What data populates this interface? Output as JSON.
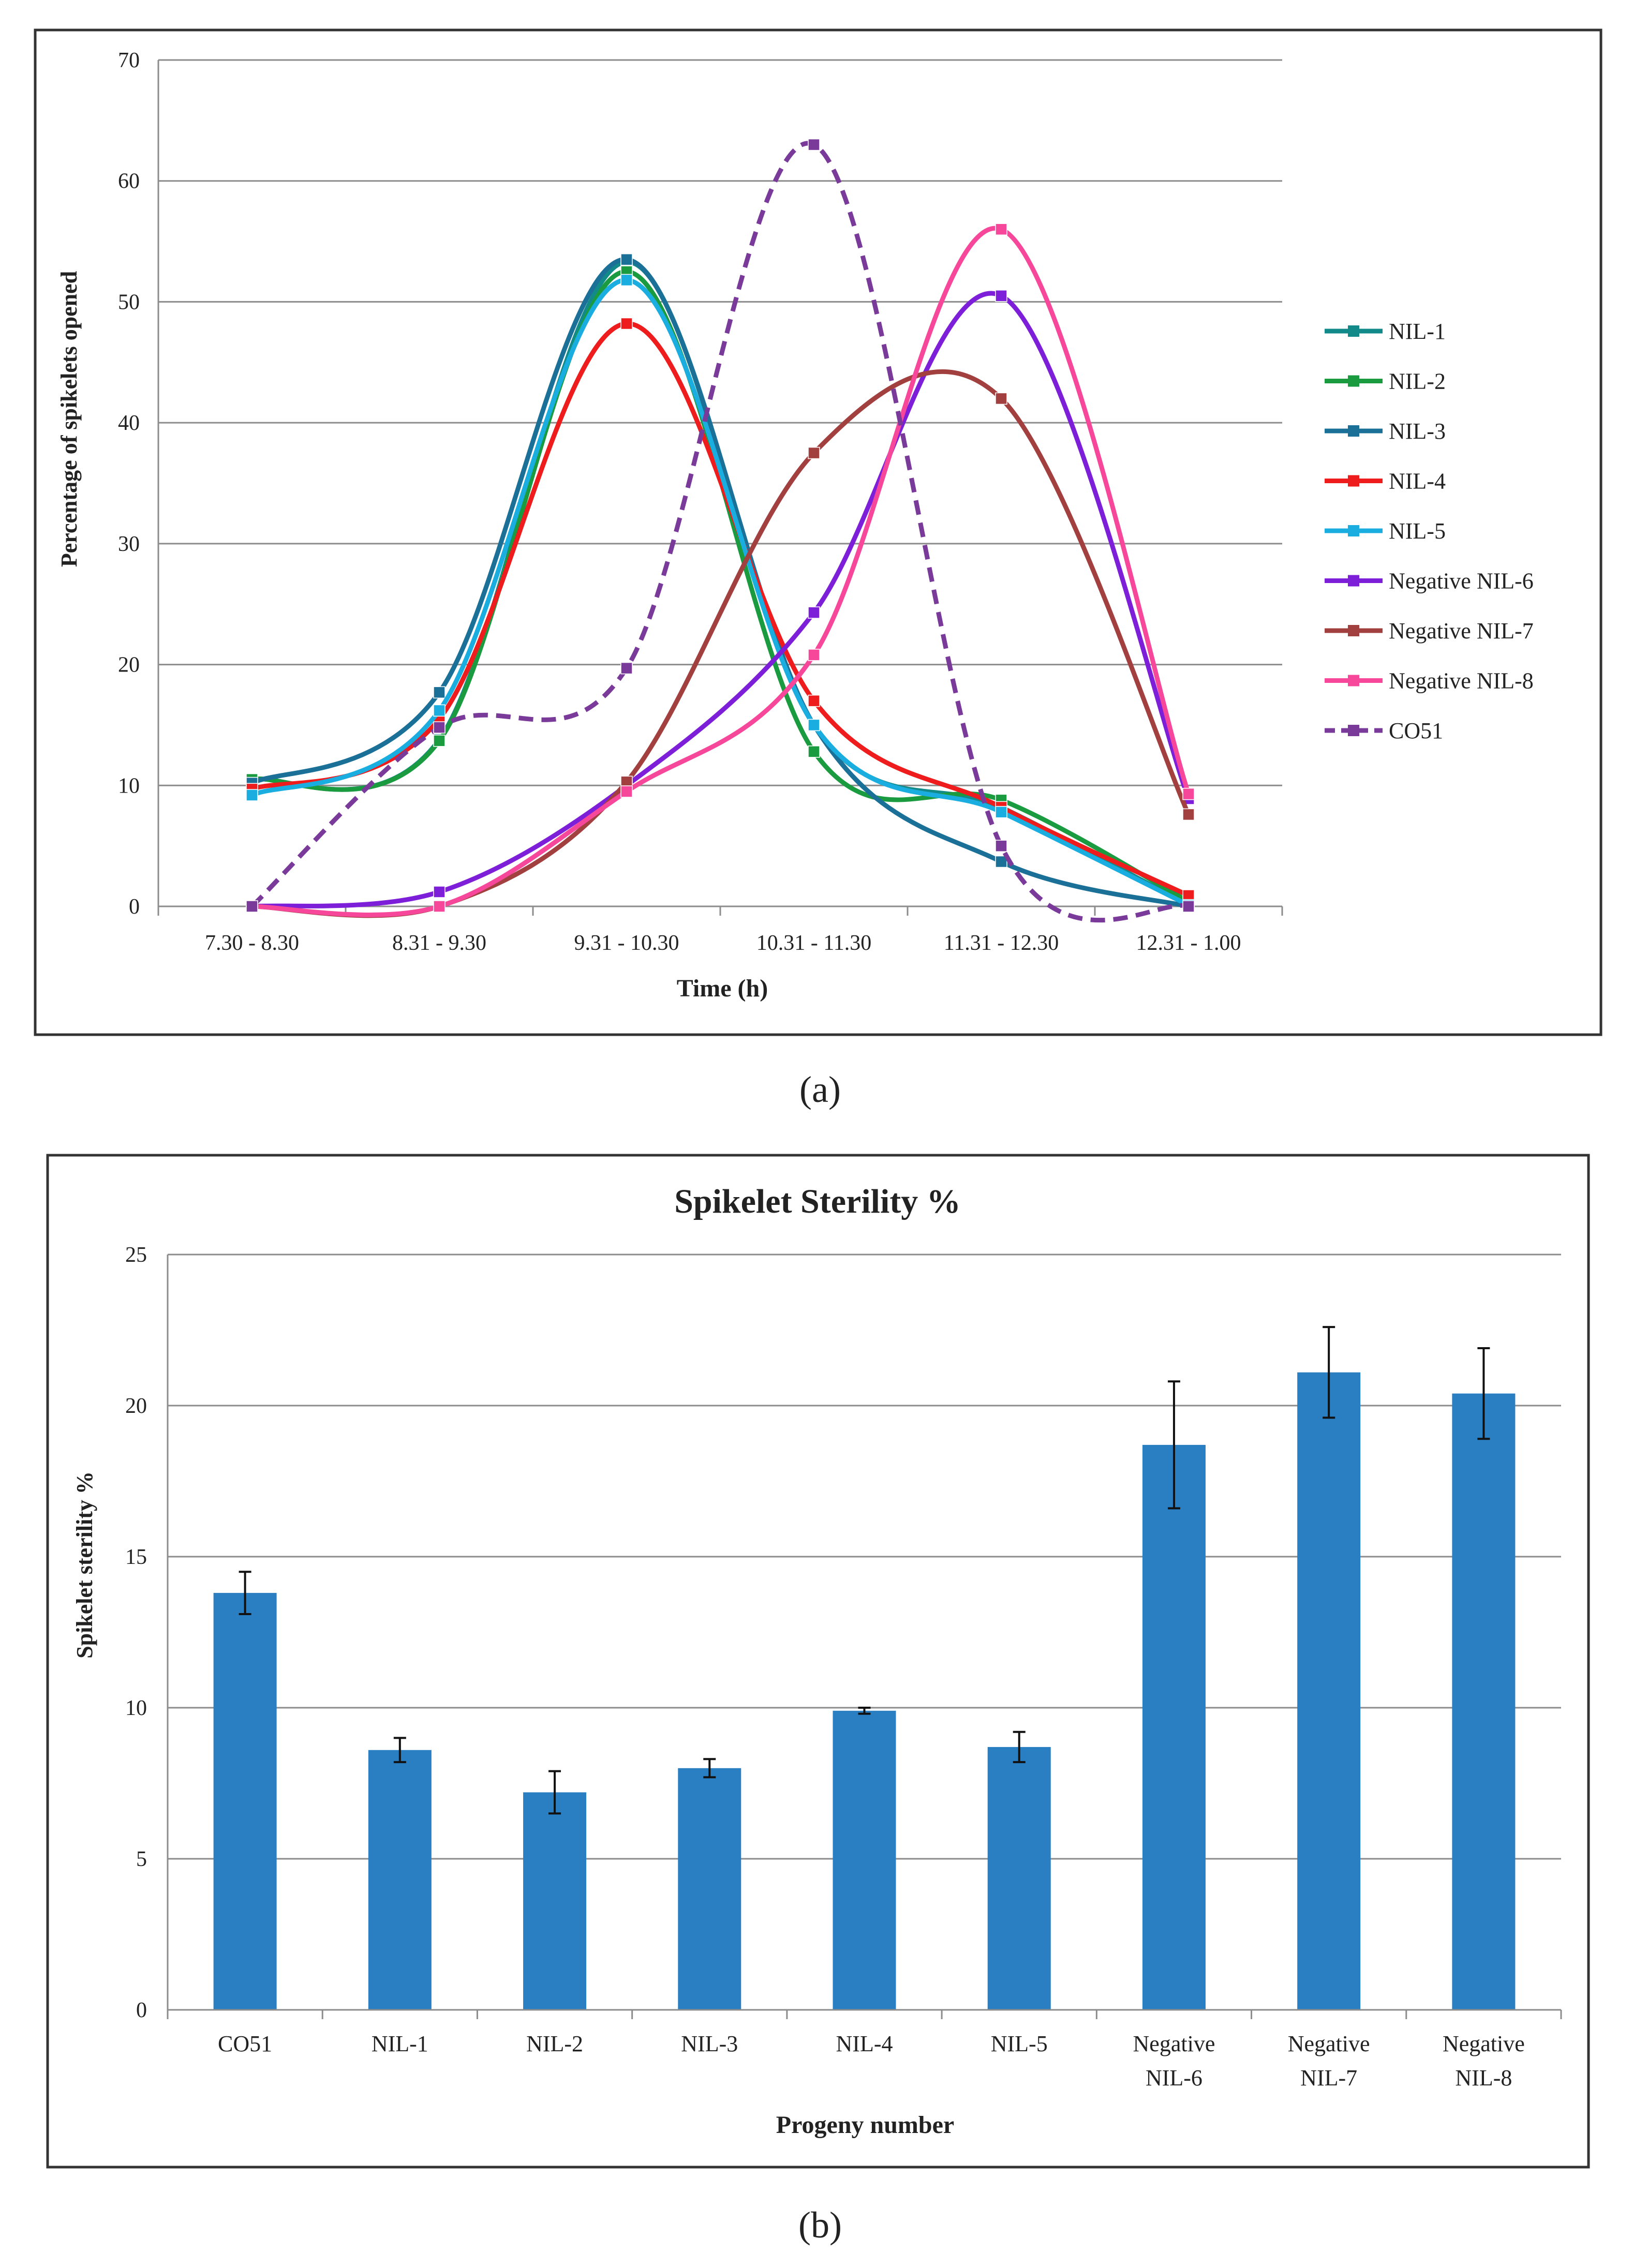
{
  "chart_data": [
    {
      "type": "line",
      "panel_label": "(a)",
      "title": "",
      "xlabel": "Time (h)",
      "ylabel": "Percentage of spikelets opened",
      "ylim": [
        0,
        70
      ],
      "yticks": [
        0,
        10,
        20,
        30,
        40,
        50,
        60,
        70
      ],
      "grid": true,
      "legend_position": "right",
      "categories": [
        "7.30 - 8.30",
        "8.31 - 9.30",
        "9.31 - 10.30",
        "10.31 - 11.30",
        "11.31 - 12.30",
        "12.31 - 1.00"
      ],
      "series": [
        {
          "name": "NIL-1",
          "color": "#138a8a",
          "dashed": false,
          "values": [
            10.5,
            13.8,
            53.3,
            15.0,
            8.2,
            0.1
          ]
        },
        {
          "name": "NIL-2",
          "color": "#1a9b40",
          "dashed": false,
          "values": [
            10.5,
            13.7,
            52.5,
            12.8,
            8.8,
            0.4
          ]
        },
        {
          "name": "NIL-3",
          "color": "#1b7098",
          "dashed": false,
          "values": [
            10.2,
            17.7,
            53.5,
            15.0,
            3.7,
            0.0
          ]
        },
        {
          "name": "NIL-4",
          "color": "#ee1c1c",
          "dashed": false,
          "values": [
            9.7,
            15.5,
            48.2,
            17.0,
            8.2,
            0.9
          ]
        },
        {
          "name": "NIL-5",
          "color": "#1aaee0",
          "dashed": false,
          "values": [
            9.2,
            16.2,
            51.8,
            15.0,
            7.8,
            0.1
          ]
        },
        {
          "name": "Negative NIL-6",
          "color": "#7d1fd8",
          "dashed": false,
          "values": [
            0.0,
            1.2,
            10.0,
            24.3,
            50.5,
            8.9
          ]
        },
        {
          "name": "Negative NIL-7",
          "color": "#a23f3f",
          "dashed": false,
          "values": [
            0.0,
            0.0,
            10.3,
            37.5,
            42.0,
            7.6
          ]
        },
        {
          "name": "Negative NIL-8",
          "color": "#f7479b",
          "dashed": false,
          "values": [
            0.0,
            0.0,
            9.5,
            20.8,
            56.0,
            9.3
          ]
        },
        {
          "name": "CO51",
          "color": "#7a3a9a",
          "dashed": true,
          "values": [
            0.0,
            14.8,
            19.7,
            63.0,
            5.0,
            0.0
          ]
        }
      ]
    },
    {
      "type": "bar",
      "panel_label": "(b)",
      "title": "Spikelet Sterility %",
      "xlabel": "Progeny number",
      "ylabel": "Spikelet sterility %",
      "ylim": [
        0,
        25
      ],
      "yticks": [
        0,
        5,
        10,
        15,
        20,
        25
      ],
      "grid": true,
      "bar_color": "#2a7fc2",
      "categories": [
        [
          "CO51"
        ],
        [
          "NIL-1"
        ],
        [
          "NIL-2"
        ],
        [
          "NIL-3"
        ],
        [
          "NIL-4"
        ],
        [
          "NIL-5"
        ],
        [
          "Negative",
          "NIL-6"
        ],
        [
          "Negative",
          "NIL-7"
        ],
        [
          "Negative",
          "NIL-8"
        ]
      ],
      "values": [
        13.8,
        8.6,
        7.2,
        8.0,
        9.9,
        8.7,
        18.7,
        21.1,
        20.4
      ],
      "errors": [
        0.7,
        0.4,
        0.7,
        0.3,
        0.1,
        0.5,
        2.1,
        1.5,
        1.5
      ]
    }
  ]
}
